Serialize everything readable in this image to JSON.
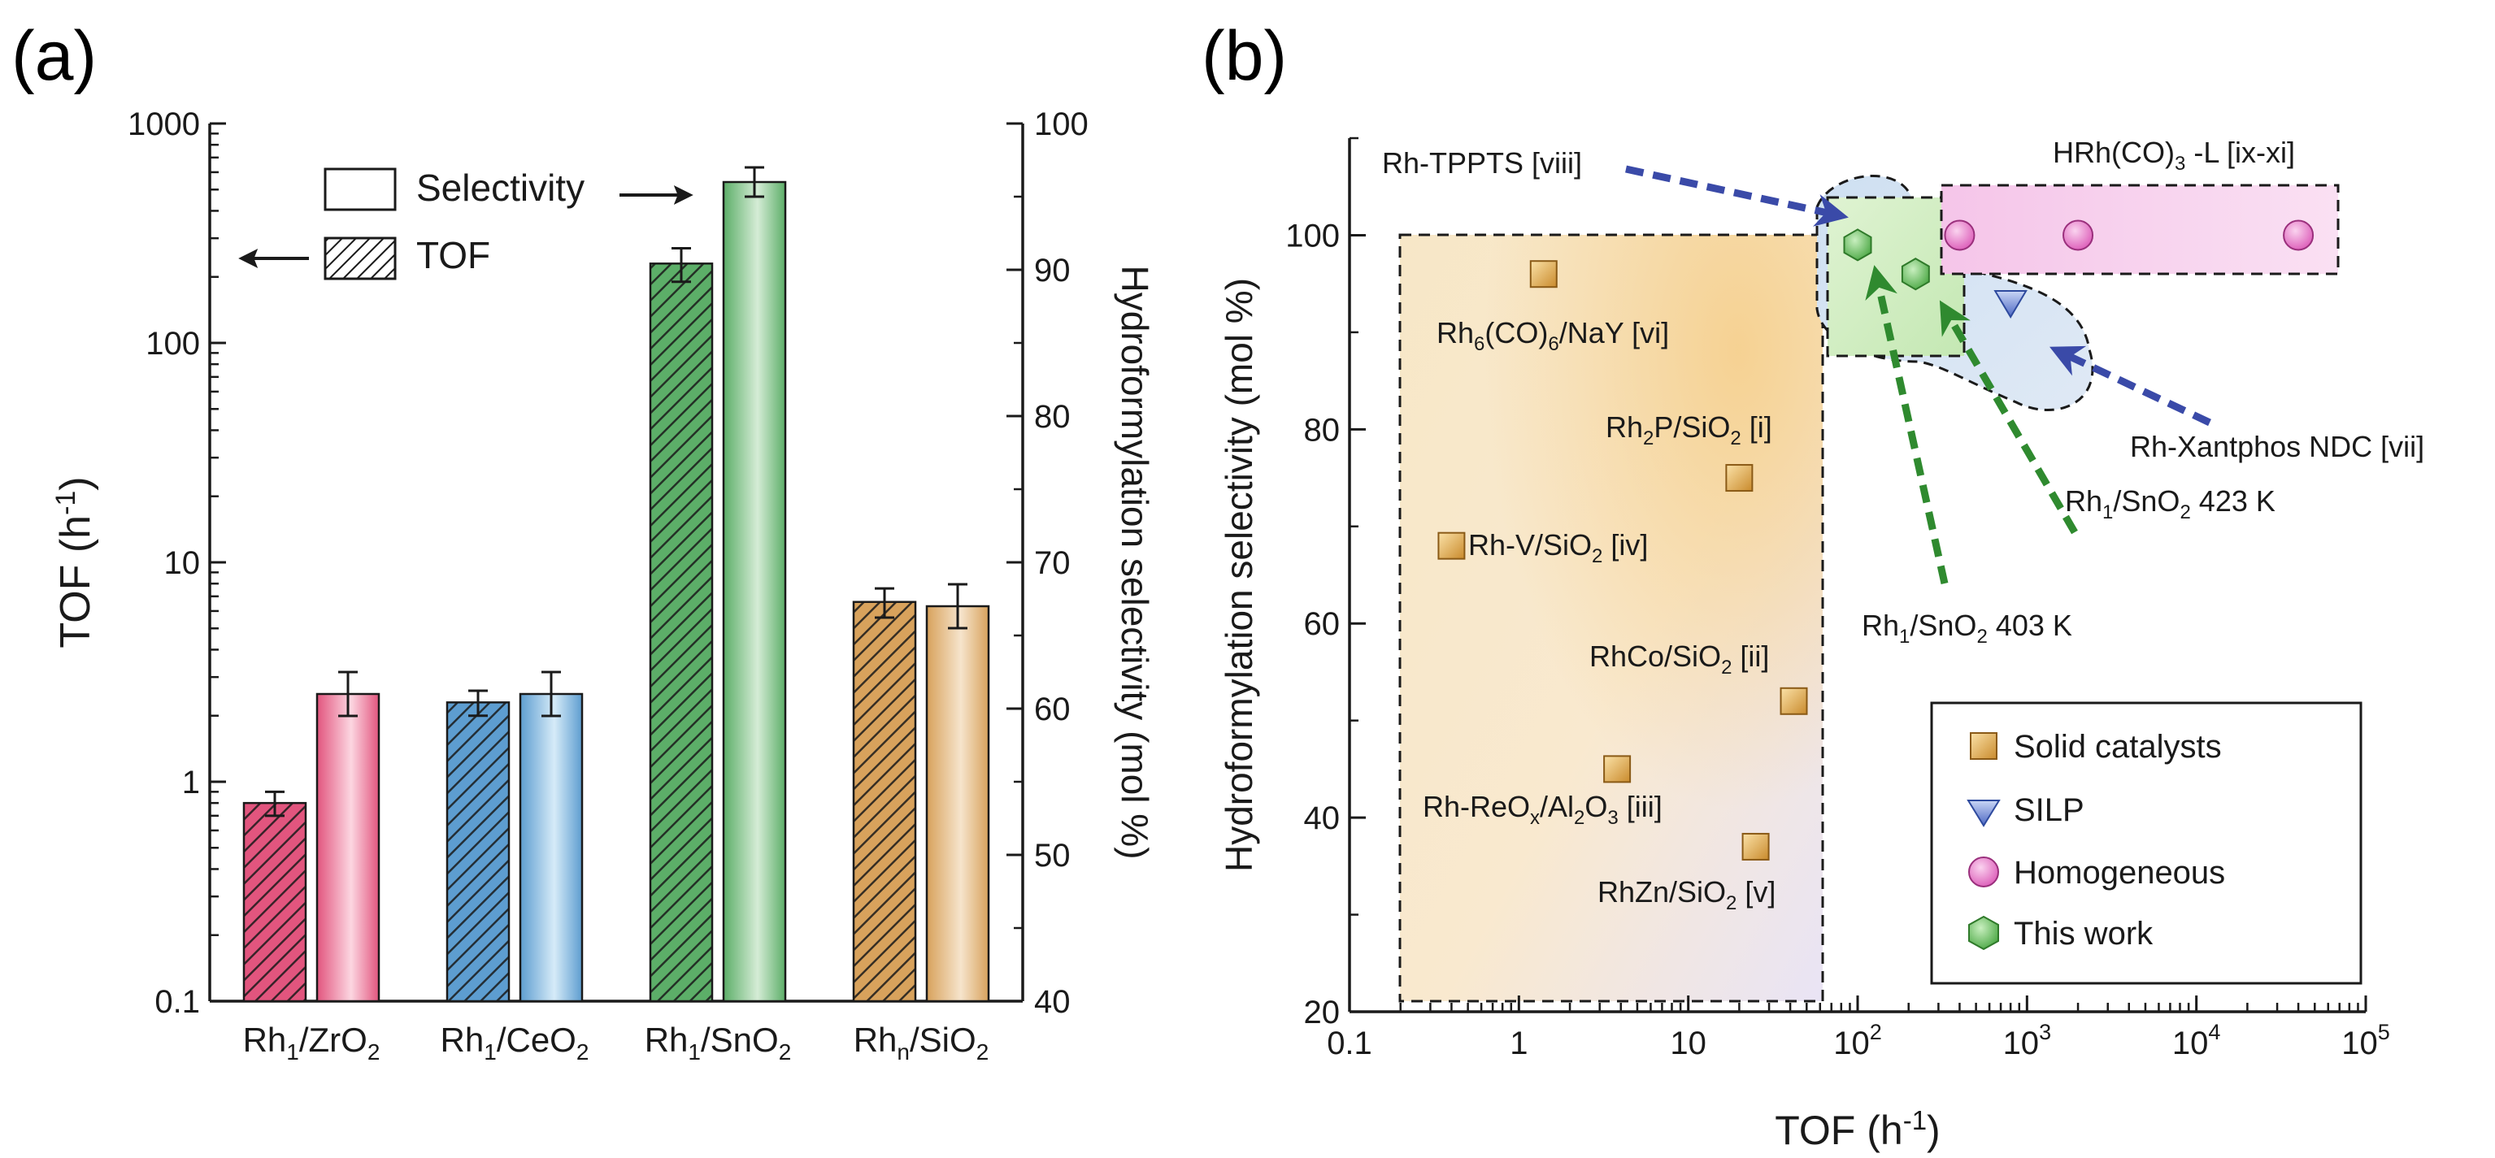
{
  "figure": {
    "panel_a_label": "(a)",
    "panel_b_label": "(b)"
  },
  "chart_data": [
    {
      "type": "bar",
      "panel": "a",
      "categories": [
        "Rh1/ZrO2",
        "Rh1/CeO2",
        "Rh1/SnO2",
        "Rhn/SiO2"
      ],
      "category_main": [
        "Rh",
        "Rh",
        "Rh",
        "Rh"
      ],
      "category_sub": [
        "1",
        "1",
        "1",
        "n"
      ],
      "category_rest": [
        "/ZrO",
        "/CeO",
        "/SnO",
        "/SiO"
      ],
      "category_tail": [
        "2",
        "2",
        "2",
        "2"
      ],
      "colors": [
        "#e2557e",
        "#5d9dd0",
        "#5cae68",
        "#d8a25c"
      ],
      "light_colors": [
        "#fcd6e1",
        "#d6ebf8",
        "#d5ecd6",
        "#f6e4cc"
      ],
      "series": [
        {
          "name": "TOF",
          "axis": "left",
          "values": [
            0.8,
            2.3,
            230,
            6.6
          ],
          "errors": [
            0.1,
            0.3,
            40,
            1.0
          ]
        },
        {
          "name": "Selectivity",
          "axis": "right",
          "values": [
            61,
            61,
            96,
            67
          ],
          "errors": [
            1.5,
            1.5,
            1.0,
            1.5
          ]
        }
      ],
      "ylabel_left_main": "TOF (h",
      "ylabel_left_sup": "-1",
      "ylabel_left_tail": ")",
      "ylabel_right": "Hydroformylation  selectivity (mol %)",
      "ylim_left": [
        0.1,
        1000
      ],
      "ylim_right": [
        40,
        100
      ],
      "yscale_left": "log",
      "left_ticks": [
        "0.1",
        "1",
        "10",
        "100",
        "1000"
      ],
      "right_ticks": [
        "40",
        "50",
        "60",
        "70",
        "80",
        "90",
        "100"
      ],
      "legend": [
        {
          "label": "Selectivity",
          "pattern": "open",
          "arrow": "right"
        },
        {
          "label": "TOF",
          "pattern": "hatched",
          "arrow": "left"
        }
      ]
    },
    {
      "type": "scatter",
      "panel": "b",
      "xscale": "log",
      "xlim": [
        0.1,
        100000
      ],
      "ylim": [
        20,
        110
      ],
      "xlabel_main": "TOF (h",
      "xlabel_sup": "-1",
      "xlabel_tail": ")",
      "ylabel": "Hydroformylation  selectivity (mol %)",
      "x_ticks": [
        {
          "main": "0.1",
          "sup": ""
        },
        {
          "main": "1",
          "sup": ""
        },
        {
          "main": "10",
          "sup": ""
        },
        {
          "main": "10",
          "sup": "2"
        },
        {
          "main": "10",
          "sup": "3"
        },
        {
          "main": "10",
          "sup": "4"
        },
        {
          "main": "10",
          "sup": "5"
        }
      ],
      "y_ticks": [
        "20",
        "40",
        "60",
        "80",
        "100"
      ],
      "series": [
        {
          "name": "Solid catalysts",
          "marker": "square",
          "color": "#d49a43",
          "points": [
            {
              "x": 1.4,
              "y": 96,
              "label": "Rh6(CO)6/NaY [vi]"
            },
            {
              "x": 20,
              "y": 75,
              "label": "Rh2P/SiO2 [i]"
            },
            {
              "x": 0.4,
              "y": 68,
              "label": "Rh-V/SiO2 [iv]"
            },
            {
              "x": 42,
              "y": 52,
              "label": "RhCo/SiO2 [ii]"
            },
            {
              "x": 3.8,
              "y": 45,
              "label": "Rh-ReOx/Al2O3 [iii]"
            },
            {
              "x": 25,
              "y": 37,
              "label": "RhZn/SiO2 [v]"
            }
          ]
        },
        {
          "name": "SILP",
          "marker": "triangle-down",
          "color": "#5b74c8",
          "points": [
            {
              "x": 800,
              "y": 93
            }
          ]
        },
        {
          "name": "Homogeneous",
          "marker": "circle",
          "color": "#e46fc4",
          "points": [
            {
              "x": 400,
              "y": 100
            },
            {
              "x": 2000,
              "y": 100
            },
            {
              "x": 40000,
              "y": 100
            }
          ]
        },
        {
          "name": "This work",
          "marker": "hexagon",
          "color": "#5fba57",
          "points": [
            {
              "x": 100,
              "y": 99
            },
            {
              "x": 220,
              "y": 96
            }
          ]
        }
      ],
      "annotations": [
        {
          "text_main": "Rh-TPPTS  [viii]"
        },
        {
          "text_main": "HRh(CO)",
          "text_sub": "3",
          "text_tail": " -L  [ix-xi]"
        },
        {
          "text_main": "Rh-Xantphos NDC  [vii]"
        },
        {
          "text_main": "Rh",
          "text_sub": "1",
          "text_tail": "/SnO",
          "text_sub2": "2",
          "text_end": "  423 K"
        },
        {
          "text_main": "Rh",
          "text_sub": "1",
          "text_tail": "/SnO",
          "text_sub2": "2",
          "text_end": "  403 K"
        }
      ],
      "point_label_parts": [
        {
          "a": "Rh",
          "s1": "6",
          "b": "(CO)",
          "s2": "6",
          "c": "/NaY [vi]"
        },
        {
          "a": "Rh",
          "s1": "2",
          "b": "P/SiO",
          "s2": "2",
          "c": " [i]"
        },
        {
          "a": "Rh-V/SiO",
          "s1": "2",
          "b": " [iv]",
          "s2": "",
          "c": ""
        },
        {
          "a": "RhCo/SiO",
          "s1": "2",
          "b": " [ii]",
          "s2": "",
          "c": ""
        },
        {
          "a": "Rh-ReO",
          "s1": "x",
          "b": "/Al",
          "s2": "2",
          "c": "O",
          "s3": "3",
          "d": " [iii]"
        },
        {
          "a": "RhZn/SiO",
          "s1": "2",
          "b": " [v]",
          "s2": "",
          "c": ""
        }
      ],
      "legend": [
        {
          "label": "Solid catalysts"
        },
        {
          "label": "SILP"
        },
        {
          "label": "Homogeneous"
        },
        {
          "label": "This work"
        }
      ],
      "arrow_colors": {
        "blue": "#3a4aa8",
        "green": "#2f8a2f"
      }
    }
  ]
}
